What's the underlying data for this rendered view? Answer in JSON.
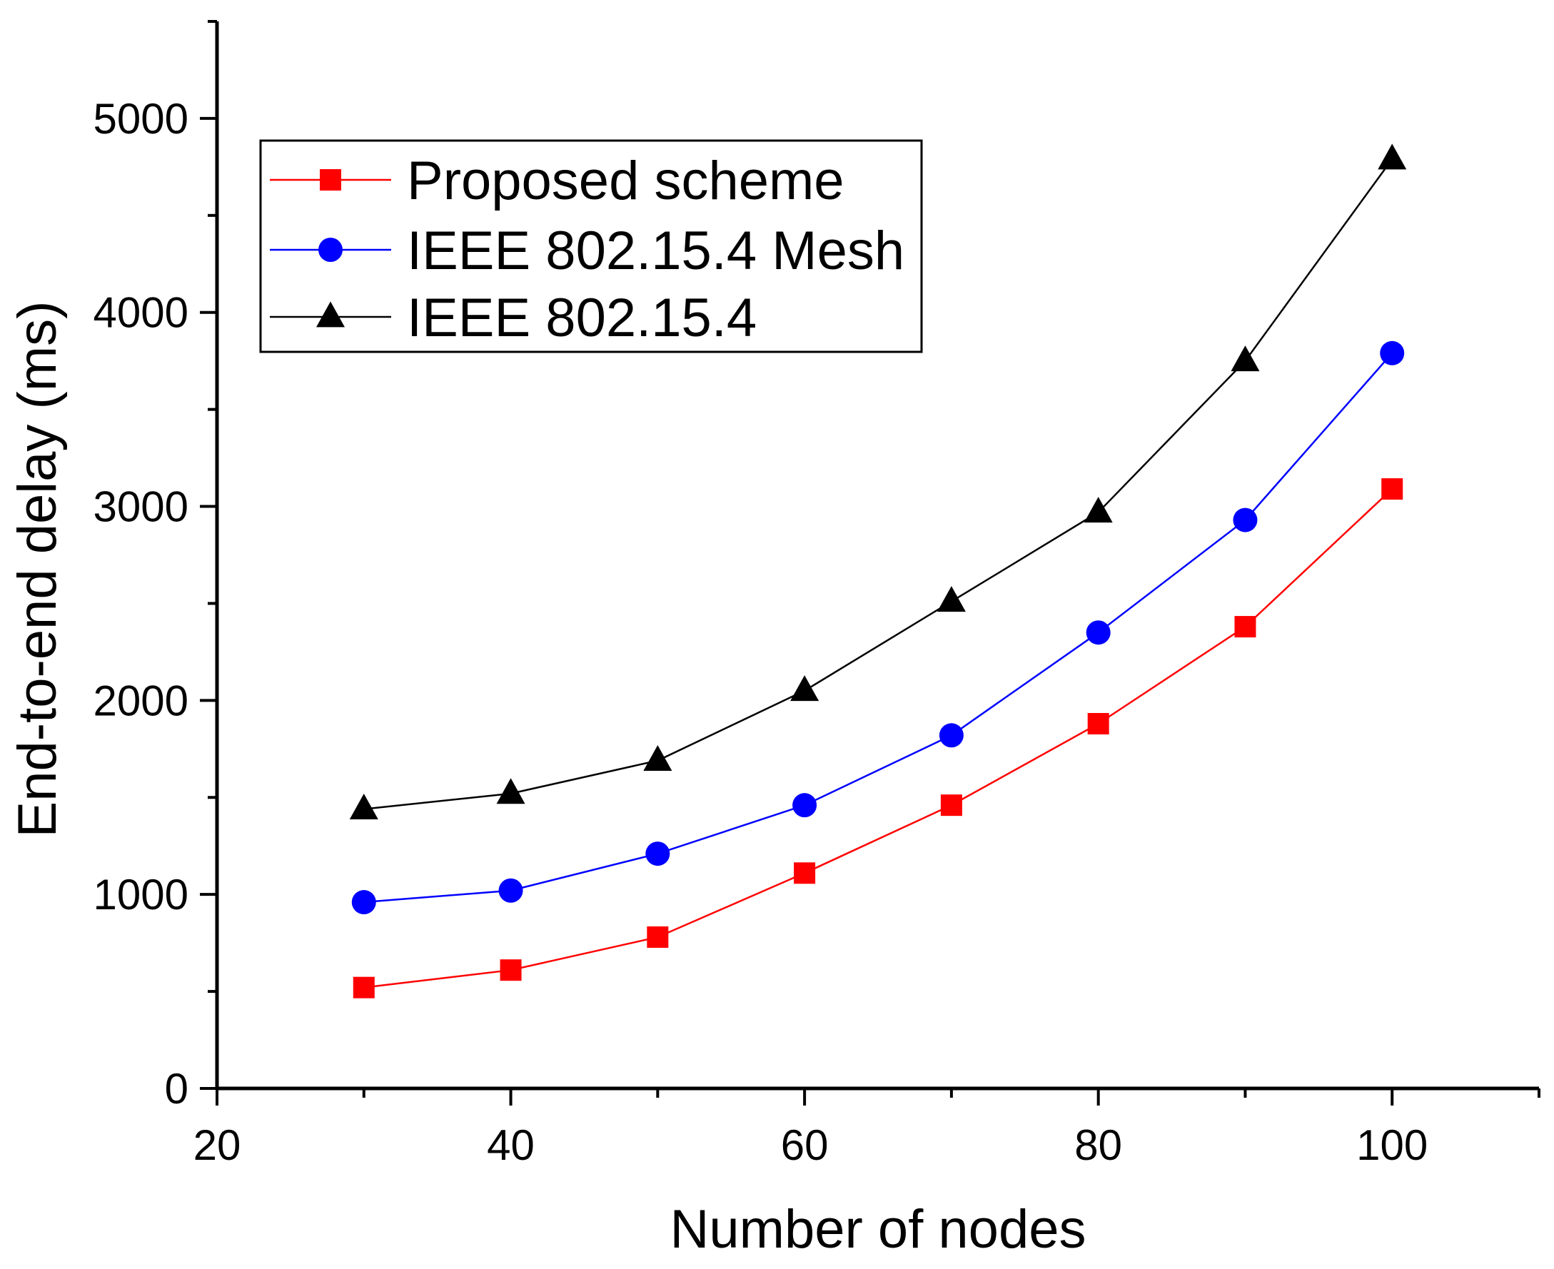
{
  "chart_data": {
    "type": "line",
    "title": "",
    "xlabel": "Number of nodes",
    "ylabel": "End-to-end delay (ms)",
    "xlim": [
      20,
      110
    ],
    "ylim": [
      0,
      5500
    ],
    "x_major_ticks": [
      20,
      40,
      60,
      80,
      100
    ],
    "x_minor_ticks": [
      30,
      50,
      70,
      90,
      110
    ],
    "y_major_ticks": [
      0,
      1000,
      2000,
      3000,
      4000,
      5000
    ],
    "y_minor_ticks": [
      500,
      1500,
      2500,
      3500,
      4500,
      5500
    ],
    "x_tick_labels": [
      "20",
      "40",
      "60",
      "80",
      "100"
    ],
    "y_tick_labels": [
      "0",
      "1000",
      "2000",
      "3000",
      "4000",
      "5000"
    ],
    "grid": false,
    "legend_position": "top-left",
    "x": [
      30,
      40,
      50,
      60,
      70,
      80,
      90,
      100
    ],
    "series": [
      {
        "name": "Proposed scheme",
        "color": "#ff0000",
        "marker": "square",
        "values": [
          520,
          610,
          780,
          1110,
          1460,
          1880,
          2380,
          3090
        ]
      },
      {
        "name": "IEEE 802.15.4 Mesh",
        "color": "#0000ff",
        "marker": "circle",
        "values": [
          960,
          1020,
          1210,
          1460,
          1820,
          2350,
          2930,
          3790
        ]
      },
      {
        "name": "IEEE 802.15.4",
        "color": "#000000",
        "marker": "triangle",
        "values": [
          1440,
          1520,
          1690,
          2050,
          2510,
          2970,
          3750,
          4790
        ]
      }
    ]
  }
}
